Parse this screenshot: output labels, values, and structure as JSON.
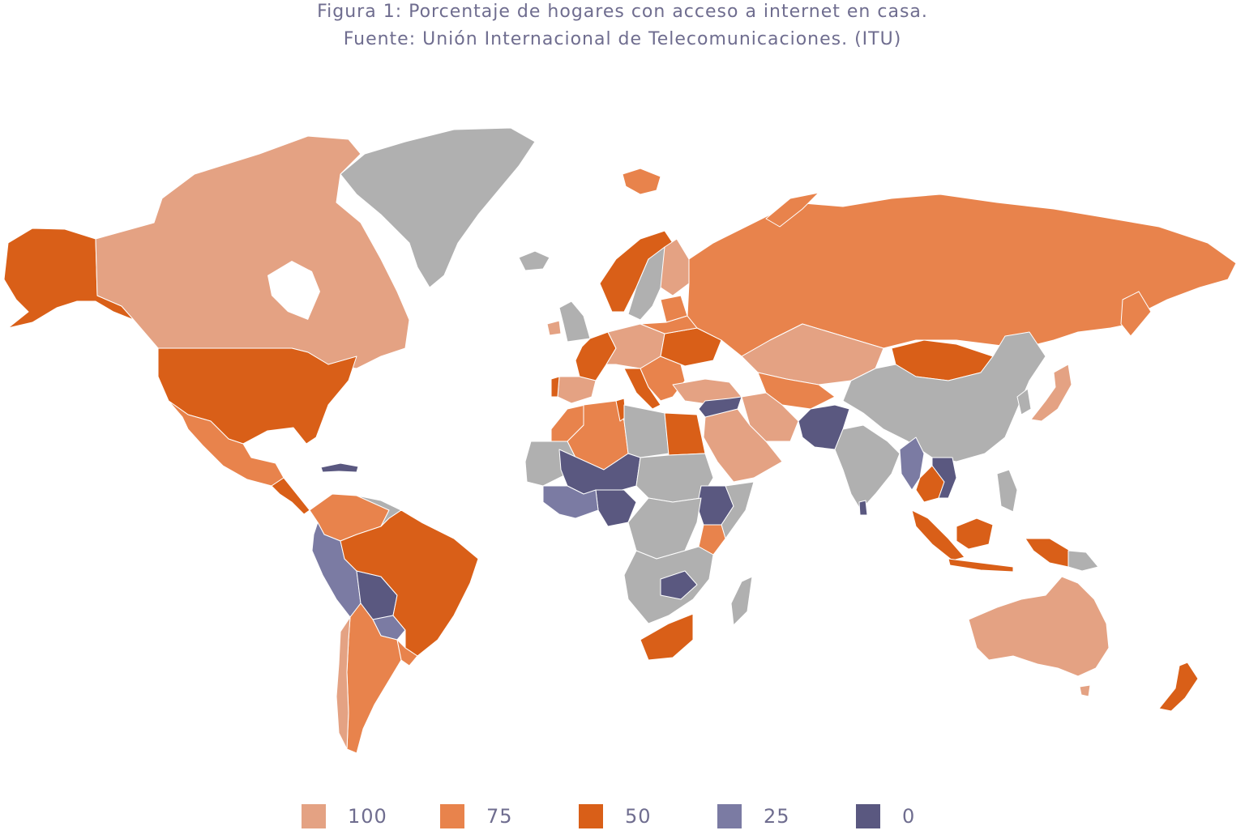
{
  "caption": {
    "line1": "Figura 1: Porcentaje de hogares con acceso a internet en casa.",
    "line2": "Fuente: Unión Internacional de Telecomunicaciones. (ITU)"
  },
  "colors": {
    "c100": "#e4a283",
    "c75": "#e8834c",
    "c50": "#d95f18",
    "c25": "#7b7ba3",
    "c0": "#5a5880",
    "nodata": "#b0b0b0"
  },
  "legend": [
    {
      "label": "100",
      "color": "#e4a283"
    },
    {
      "label": "75",
      "color": "#e8834c"
    },
    {
      "label": "50",
      "color": "#d95f18"
    },
    {
      "label": "25",
      "color": "#7b7ba3"
    },
    {
      "label": "0",
      "color": "#5a5880"
    }
  ]
}
